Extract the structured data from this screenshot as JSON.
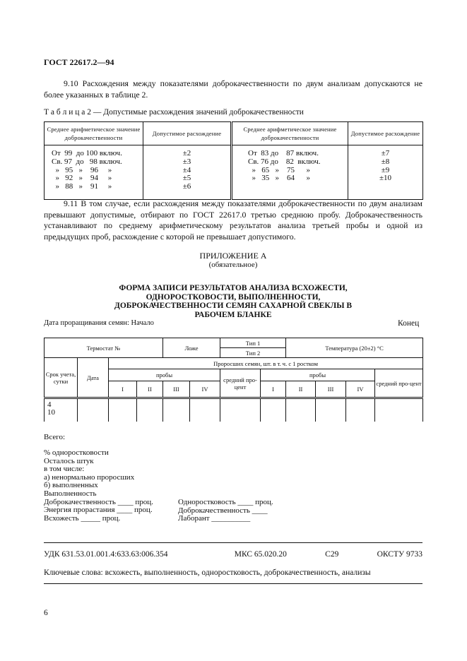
{
  "header": "ГОСТ 22617.2—94",
  "p910": "9.10 Расхождения между показателями доброкачественности по двум анализам допускаются не более указанных в таблице 2.",
  "table2": {
    "caption": "Т а б л и ц а  2 — Допустимые расхождения значений  доброкачественности",
    "h1": "Среднее арифметическое значение доброкачественности",
    "h2": "Допустимое расхождение",
    "left_ranges": [
      "От  99  до 100 включ.",
      "Св. 97  до   98 включ.",
      "  »   95   »    96     »",
      "  »   92   »    94     »",
      "  »   88   »    91     »"
    ],
    "left_values": [
      "±2",
      "±3",
      "±4",
      "±5",
      "±6"
    ],
    "right_ranges": [
      "От  83 до    87 включ.",
      "Св. 76 до    82  включ.",
      "  »   65   »    75      »",
      "  »   35   »    64      »"
    ],
    "right_values": [
      "±7",
      "±8",
      "±9",
      "±10"
    ]
  },
  "p911": "9.11 В том случае, если расхождения между показателями доброкачественности по двум анализам превышают допустимые, отбирают по ГОСТ 22617.0 третью среднюю пробу. Доброкачественность устанавливают по среднему арифметическому результатов анализа третьей пробы и одной из предыдущих проб, расхождение с которой не превышает допустимого.",
  "appendix": {
    "title": "ПРИЛОЖЕНИЕ А",
    "sub": "(обязательное)",
    "form_title": "ФОРМА ЗАПИСИ РЕЗУЛЬТАТОВ АНАЛИЗА ВСХОЖЕСТИ, ОДНОРОСТКОВОСТИ, ВЫПОЛНЕННОСТИ, ДОБРОКАЧЕСТВЕННОСТИ СЕМЯН САХАРНОЙ СВЕКЛЫ В РАБОЧЕМ БЛАНКЕ"
  },
  "date_start": "Дата проращивания семян: Начало",
  "date_end": "Конец",
  "form": {
    "thermostat": "Термостат №",
    "bed": "Ложе",
    "type1": "Тип 1",
    "type2": "Тип 2",
    "temp": "Температура  (20±2)  °С",
    "term": "Срок учета, сутки",
    "date": "Дата",
    "sprouted": "Проросших семян, шт. в т. ч. с 1 ростком",
    "samples": "пробы",
    "avg": "средний про-цент",
    "roman": [
      "I",
      "II",
      "III",
      "IV"
    ],
    "days": [
      "4",
      "10"
    ]
  },
  "total": "Всего:",
  "list_left": [
    "% одноростковости",
    "Осталось штук",
    "в том числе:",
    "а) ненормально проросших",
    "б) выполненных",
    "Выполненность",
    "Доброкачественность ____ проц.",
    "Энергия прорастания ____ проц.",
    "Всхожесть _____ проц."
  ],
  "list_right": [
    "Одноростковость ____ проц.",
    "Доброкачественность ____",
    "Лаборант __________"
  ],
  "footer": {
    "udk": "УДК 631.53.01.001.4:633.63:006.354",
    "mks": "МКС 65.020.20",
    "c": "С29",
    "okstu": "ОКСТУ 9733",
    "keywords": "Ключевые слова: всхожесть, выполненность, одноростковость, доброкачественность, анализы"
  },
  "page_number": "6"
}
